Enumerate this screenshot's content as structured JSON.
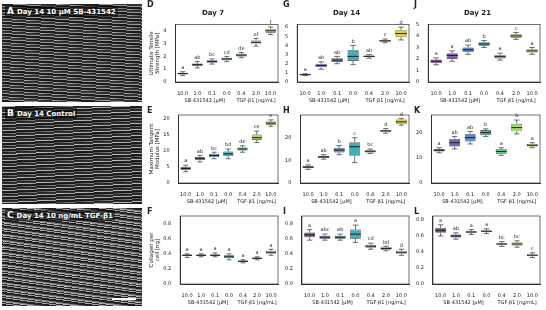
{
  "images": [
    {
      "panel": "A",
      "label": "Day 14 10 μM SB-431542"
    },
    {
      "panel": "B",
      "label": "Day 14 Control"
    },
    {
      "panel": "C",
      "label": "Day 14 10 ng/mL TGF-β1"
    }
  ],
  "chart_data": [
    {
      "panel": "D",
      "type": "box",
      "title": "Day 7",
      "y_label": "Ultimate Tensile Strength [MPa]",
      "categories": [
        "10.0",
        "1.0",
        "0.1",
        "0.0",
        "0.4",
        "2.0",
        "10.0"
      ],
      "x_groups": [
        {
          "label": "SB-431542 [μM]",
          "start": 0,
          "end": 3
        },
        {
          "label": "TGF-β1 [ng/mL]",
          "start": 4,
          "end": 6
        }
      ],
      "boxes": [
        [
          0.5,
          0.6,
          0.65,
          0.7,
          0.8
        ],
        [
          1.1,
          1.25,
          1.35,
          1.45,
          1.6
        ],
        [
          1.4,
          1.5,
          1.6,
          1.7,
          1.8
        ],
        [
          1.6,
          1.7,
          1.8,
          1.9,
          2.0
        ],
        [
          1.9,
          2.0,
          2.1,
          2.2,
          2.3
        ],
        [
          2.8,
          3.0,
          3.1,
          3.25,
          3.4
        ],
        [
          3.7,
          3.85,
          4.0,
          4.15,
          4.3
        ]
      ],
      "letters": [
        "a",
        "ab",
        "bc",
        "cd",
        "de",
        "ef",
        "f"
      ],
      "colors": [
        "#8e4a8c",
        "#7e62b0",
        "#5b8ac6",
        "#3fb0b5",
        "#5dc590",
        "#a8d86e",
        "#e8d03c"
      ],
      "ylim": [
        0,
        4.5
      ],
      "yticks": [
        0,
        1,
        2,
        3,
        4
      ],
      "grid": false
    },
    {
      "panel": "E",
      "type": "box",
      "y_label": "Maximum Tangent Modulus [MPa]",
      "categories": [
        "10.0",
        "1.0",
        "0.1",
        "0.0",
        "0.4",
        "2.0",
        "10.0"
      ],
      "x_groups": [
        {
          "label": "SB-431542 [μM]",
          "start": 0,
          "end": 3
        },
        {
          "label": "TGF-β1 [ng/mL]",
          "start": 4,
          "end": 6
        }
      ],
      "boxes": [
        [
          3.5,
          4.0,
          4.5,
          5.0,
          5.5
        ],
        [
          6.5,
          7.0,
          7.5,
          8.0,
          8.5
        ],
        [
          7.5,
          8.0,
          8.5,
          9.0,
          9.5
        ],
        [
          7.5,
          8.3,
          9.0,
          9.7,
          10.5
        ],
        [
          9.5,
          10.0,
          10.5,
          11.0,
          11.5
        ],
        [
          12.5,
          13.3,
          14.0,
          15.0,
          16.0
        ],
        [
          17.5,
          18.0,
          18.5,
          19.0,
          19.5
        ]
      ],
      "letters": [
        "a",
        "ab",
        "bc",
        "bd",
        "de",
        "ce",
        "e"
      ],
      "colors": [
        "#8e4a8c",
        "#7e62b0",
        "#5b8ac6",
        "#3fb0b5",
        "#5dc590",
        "#a8d86e",
        "#e8d03c"
      ],
      "ylim": [
        0,
        21
      ],
      "yticks": [
        0,
        5,
        10,
        15,
        20
      ],
      "grid": false
    },
    {
      "panel": "F",
      "type": "box",
      "y_label": "Collagen per cell [ng]",
      "categories": [
        "10.0",
        "1.0",
        "0.1",
        "0.0",
        "0.4",
        "2.0",
        "10.0"
      ],
      "x_groups": [
        {
          "label": "SB-431542 [μM]",
          "start": 0,
          "end": 3
        },
        {
          "label": "TGF-β1 [ng/mL]",
          "start": 4,
          "end": 6
        }
      ],
      "boxes": [
        [
          0.35,
          0.37,
          0.38,
          0.39,
          0.4
        ],
        [
          0.36,
          0.37,
          0.38,
          0.39,
          0.4
        ],
        [
          0.36,
          0.37,
          0.38,
          0.39,
          0.41
        ],
        [
          0.32,
          0.34,
          0.36,
          0.38,
          0.4
        ],
        [
          0.28,
          0.29,
          0.3,
          0.31,
          0.32
        ],
        [
          0.32,
          0.33,
          0.34,
          0.35,
          0.36
        ],
        [
          0.38,
          0.4,
          0.42,
          0.44,
          0.46
        ]
      ],
      "letters": [
        "a",
        "a",
        "a",
        "a",
        "a",
        "a",
        "a"
      ],
      "colors": [
        "#8e4a8c",
        "#7e62b0",
        "#5b8ac6",
        "#3fb0b5",
        "#5dc590",
        "#a8d86e",
        "#e8d03c"
      ],
      "ylim": [
        0,
        0.9
      ],
      "yticks": [
        {
          "value": 0,
          "label": "0.0"
        },
        0.2,
        0.4,
        0.6,
        0.8
      ],
      "grid": false
    },
    {
      "panel": "G",
      "type": "box",
      "title": "Day 14",
      "categories": [
        "10.0",
        "1.0",
        "0.1",
        "0.0",
        "0.4",
        "2.0",
        "10.0"
      ],
      "x_groups": [
        {
          "label": "SB-431542 [μM]",
          "start": 0,
          "end": 3
        },
        {
          "label": "TGF-β1 [ng/mL]",
          "start": 4,
          "end": 6
        }
      ],
      "boxes": [
        [
          0.7,
          0.75,
          0.8,
          0.85,
          0.9
        ],
        [
          1.4,
          1.6,
          1.8,
          2.0,
          2.2
        ],
        [
          2.0,
          2.2,
          2.4,
          2.6,
          2.8
        ],
        [
          1.9,
          2.3,
          2.8,
          3.5,
          4.0
        ],
        [
          2.6,
          2.7,
          2.8,
          2.9,
          3.0
        ],
        [
          4.3,
          4.4,
          4.5,
          4.6,
          4.7
        ],
        [
          4.6,
          4.9,
          5.3,
          5.7,
          6.0
        ]
      ],
      "letters": [
        "a",
        "ab",
        "ab",
        "b",
        "ab",
        "c",
        "d"
      ],
      "colors": [
        "#8e4a8c",
        "#7e62b0",
        "#5b8ac6",
        "#3fb0b5",
        "#5dc590",
        "#a8d86e",
        "#e8d03c"
      ],
      "ylim": [
        0,
        6.3
      ],
      "yticks": [
        0,
        1,
        2,
        3,
        4,
        5,
        6
      ],
      "grid": false
    },
    {
      "panel": "H",
      "type": "box",
      "categories": [
        "10.0",
        "1.0",
        "0.1",
        "0.0",
        "0.4",
        "2.0",
        "10.0"
      ],
      "x_groups": [
        {
          "label": "SB-431542 [μM]",
          "start": 0,
          "end": 3
        },
        {
          "label": "TGF-β1 [ng/mL]",
          "start": 4,
          "end": 6
        }
      ],
      "boxes": [
        [
          6.0,
          6.5,
          7.0,
          7.5,
          8.0
        ],
        [
          10.5,
          11.0,
          11.5,
          12.0,
          12.5
        ],
        [
          12.5,
          13.5,
          14.5,
          15.5,
          16.5
        ],
        [
          9.0,
          12.0,
          16.0,
          18.0,
          20.0
        ],
        [
          13.0,
          13.5,
          14.0,
          14.5,
          15.0
        ],
        [
          22.0,
          22.5,
          23.0,
          23.5,
          24.0
        ],
        [
          25.5,
          26.0,
          27.0,
          28.0,
          28.5
        ]
      ],
      "letters": [
        "a",
        "ab",
        "b",
        "c",
        "bc",
        "d",
        "d"
      ],
      "colors": [
        "#8e4a8c",
        "#7e62b0",
        "#5b8ac6",
        "#3fb0b5",
        "#5dc590",
        "#a8d86e",
        "#e8d03c"
      ],
      "ylim": [
        0,
        30
      ],
      "yticks": [
        0,
        10,
        20
      ],
      "grid": false
    },
    {
      "panel": "I",
      "type": "box",
      "categories": [
        "10.0",
        "1.0",
        "0.1",
        "0.0",
        "0.4",
        "2.0",
        "10.0"
      ],
      "x_groups": [
        {
          "label": "SB-431542 [μM]",
          "start": 0,
          "end": 3
        },
        {
          "label": "TGF-β1 [ng/mL]",
          "start": 4,
          "end": 6
        }
      ],
      "boxes": [
        [
          0.58,
          0.62,
          0.65,
          0.68,
          0.72
        ],
        [
          0.58,
          0.6,
          0.62,
          0.64,
          0.66
        ],
        [
          0.58,
          0.6,
          0.62,
          0.64,
          0.66
        ],
        [
          0.55,
          0.6,
          0.66,
          0.72,
          0.78
        ],
        [
          0.46,
          0.48,
          0.5,
          0.52,
          0.54
        ],
        [
          0.44,
          0.45,
          0.47,
          0.49,
          0.5
        ],
        [
          0.38,
          0.4,
          0.42,
          0.44,
          0.46
        ]
      ],
      "letters": [
        "a",
        "abc",
        "ab",
        "a",
        "cd",
        "bd",
        "d"
      ],
      "colors": [
        "#8e4a8c",
        "#7e62b0",
        "#5b8ac6",
        "#3fb0b5",
        "#5dc590",
        "#a8d86e",
        "#e8d03c"
      ],
      "ylim": [
        0,
        0.9
      ],
      "yticks": [
        {
          "value": 0,
          "label": "0.0"
        },
        0.2,
        0.4,
        0.6,
        0.8
      ],
      "grid": false
    },
    {
      "panel": "J",
      "type": "box",
      "title": "Day 21",
      "categories": [
        "10.0",
        "1.0",
        "0.1",
        "0.0",
        "0.4",
        "2.0",
        "10.0"
      ],
      "x_groups": [
        {
          "label": "SB-431542 [μM]",
          "start": 0,
          "end": 3
        },
        {
          "label": "TGF-β1 [ng/mL]",
          "start": 4,
          "end": 6
        }
      ],
      "boxes": [
        [
          1.5,
          1.65,
          1.8,
          1.95,
          2.1
        ],
        [
          1.8,
          2.0,
          2.3,
          2.5,
          2.7
        ],
        [
          2.4,
          2.6,
          2.8,
          3.0,
          3.2
        ],
        [
          3.0,
          3.15,
          3.3,
          3.45,
          3.6
        ],
        [
          1.9,
          2.05,
          2.2,
          2.35,
          2.5
        ],
        [
          3.7,
          3.85,
          4.0,
          4.15,
          4.3
        ],
        [
          2.4,
          2.55,
          2.7,
          2.85,
          3.0
        ]
      ],
      "letters": [
        "a",
        "a",
        "ab",
        "b",
        "a",
        "c",
        "a"
      ],
      "colors": [
        "#8e4a8c",
        "#7e62b0",
        "#5b8ac6",
        "#3fb0b5",
        "#5dc590",
        "#a8d86e",
        "#e8d03c"
      ],
      "ylim": [
        0,
        5
      ],
      "yticks": [
        0,
        1,
        2,
        3,
        4,
        5
      ],
      "grid": false
    },
    {
      "panel": "K",
      "type": "box",
      "categories": [
        "10.0",
        "1.0",
        "0.1",
        "0.0",
        "0.4",
        "2.0",
        "10.0"
      ],
      "x_groups": [
        {
          "label": "SB-431542 [μM]",
          "start": 0,
          "end": 3
        },
        {
          "label": "TGF-β1 [ng/mL]",
          "start": 4,
          "end": 6
        }
      ],
      "boxes": [
        [
          12.0,
          12.5,
          13.0,
          13.5,
          14.0
        ],
        [
          13.5,
          14.5,
          16.0,
          17.5,
          18.5
        ],
        [
          15.5,
          16.5,
          18.0,
          19.5,
          20.5
        ],
        [
          18.5,
          19.0,
          20.0,
          21.0,
          21.5
        ],
        [
          11.0,
          11.5,
          12.5,
          13.5,
          14.0
        ],
        [
          19.5,
          20.5,
          22.0,
          23.5,
          25.0
        ],
        [
          14.0,
          14.5,
          15.0,
          15.5,
          16.0
        ]
      ],
      "letters": [
        "a",
        "ab",
        "ab",
        "b",
        "a",
        "b",
        "a"
      ],
      "colors": [
        "#8e4a8c",
        "#7e62b0",
        "#5b8ac6",
        "#3fb0b5",
        "#5dc590",
        "#a8d86e",
        "#e8d03c"
      ],
      "ylim": [
        0,
        27
      ],
      "yticks": [
        0,
        10,
        20
      ],
      "grid": false
    },
    {
      "panel": "L",
      "type": "box",
      "categories": [
        "10.0",
        "1.0",
        "0.1",
        "0.0",
        "0.4",
        "2.0",
        "10.0"
      ],
      "x_groups": [
        {
          "label": "SB-431542 [μM]",
          "start": 0,
          "end": 3
        },
        {
          "label": "TGF-β1 [ng/mL]",
          "start": 4,
          "end": 6
        }
      ],
      "boxes": [
        [
          0.6,
          0.64,
          0.67,
          0.7,
          0.74
        ],
        [
          0.56,
          0.58,
          0.6,
          0.62,
          0.64
        ],
        [
          0.62,
          0.64,
          0.65,
          0.66,
          0.68
        ],
        [
          0.63,
          0.65,
          0.66,
          0.67,
          0.69
        ],
        [
          0.47,
          0.49,
          0.5,
          0.51,
          0.53
        ],
        [
          0.46,
          0.48,
          0.5,
          0.52,
          0.54
        ],
        [
          0.33,
          0.35,
          0.36,
          0.37,
          0.39
        ]
      ],
      "letters": [
        "a",
        "ab",
        "a",
        "a",
        "bc",
        "bc",
        "c"
      ],
      "colors": [
        "#8e4a8c",
        "#7e62b0",
        "#5b8ac6",
        "#3fb0b5",
        "#5dc590",
        "#a8d86e",
        "#e8d03c"
      ],
      "ylim": [
        0,
        0.85
      ],
      "yticks": [
        {
          "value": 0,
          "label": "0.0"
        },
        0.2,
        0.4,
        0.6,
        0.8
      ],
      "grid": false
    }
  ]
}
